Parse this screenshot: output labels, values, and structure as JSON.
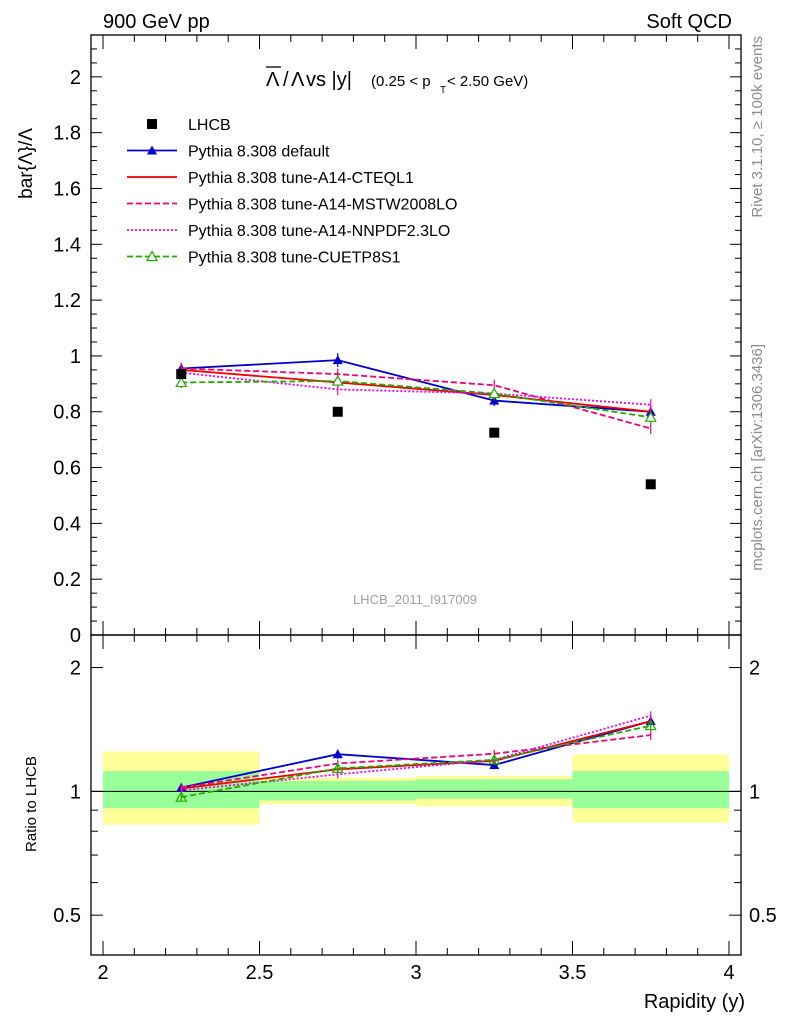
{
  "header": {
    "left": "900 GeV pp",
    "right": "Soft QCD"
  },
  "side_labels": {
    "rivet": "Rivet 3.1.10, ≥ 100k events",
    "source": "mcplots.cern.ch [arXiv:1306.3436]"
  },
  "chart_data": {
    "type": "line",
    "analysis_label": "LHCB_2011_I917009",
    "title": {
      "main": "Λ/Λ vs |y|",
      "bar_symbol": "Λ",
      "symbol": "Λ",
      "vs": " vs |y|",
      "cut_open": "(0.25 < p",
      "cut_sub": "T",
      "cut_close": " < 2.50 GeV)"
    },
    "xlabel": "Rapidity (y)",
    "ylabel": "bar{Λ}/Λ",
    "ratio_ylabel": "Ratio to LHCB",
    "xlim": [
      2,
      4
    ],
    "ylim": [
      0,
      2.15
    ],
    "ratio_ylim": [
      0.4,
      2.4
    ],
    "ratio_scale": "log",
    "x_ticks": [
      "2",
      "2.5",
      "3",
      "3.5",
      "4"
    ],
    "y_ticks": [
      "0",
      "0.2",
      "0.4",
      "0.6",
      "0.8",
      "1",
      "1.2",
      "1.4",
      "1.6",
      "1.8",
      "2"
    ],
    "ratio_ticks": [
      "0.5",
      "1",
      "2"
    ],
    "x": [
      2.25,
      2.75,
      3.25,
      3.75
    ],
    "bins": [
      [
        2.0,
        2.5
      ],
      [
        2.5,
        3.0
      ],
      [
        3.0,
        3.5
      ],
      [
        3.5,
        4.0
      ]
    ],
    "data": {
      "name": "LHCB",
      "values": [
        0.935,
        0.8,
        0.725,
        0.54
      ],
      "band_inner": [
        [
          0.91,
          1.12
        ],
        [
          0.95,
          1.06
        ],
        [
          0.96,
          1.07
        ],
        [
          0.91,
          1.12
        ]
      ],
      "band_outer": [
        [
          0.83,
          1.25
        ],
        [
          0.93,
          1.08
        ],
        [
          0.92,
          1.09
        ],
        [
          0.84,
          1.23
        ]
      ]
    },
    "series": [
      {
        "name": "Pythia 8.308 default",
        "color": "#0000cc",
        "style": "solid",
        "marker": "triangle-filled",
        "values": [
          0.955,
          0.985,
          0.84,
          0.8
        ],
        "errors": [
          0.02,
          0.025,
          0.02,
          0.02
        ]
      },
      {
        "name": "Pythia 8.308 tune-A14-CTEQL1",
        "color": "#ee0000",
        "style": "solid",
        "marker": "none",
        "values": [
          0.95,
          0.905,
          0.86,
          0.8
        ],
        "errors": [
          0.02,
          0.02,
          0.02,
          0.02
        ]
      },
      {
        "name": "Pythia 8.308 tune-A14-MSTW2008LO",
        "color": "#ee0077",
        "style": "dashed",
        "marker": "none",
        "values": [
          0.955,
          0.935,
          0.895,
          0.74
        ],
        "errors": [
          0.02,
          0.02,
          0.02,
          0.02
        ]
      },
      {
        "name": "Pythia 8.308 tune-A14-NNPDF2.3LO",
        "color": "#ee00ee",
        "style": "dotted",
        "marker": "none",
        "values": [
          0.94,
          0.88,
          0.865,
          0.825
        ],
        "errors": [
          0.02,
          0.02,
          0.02,
          0.02
        ]
      },
      {
        "name": "Pythia 8.308 tune-CUETP8S1",
        "color": "#22aa00",
        "style": "dashed",
        "marker": "triangle-open",
        "values": [
          0.905,
          0.91,
          0.865,
          0.78
        ],
        "errors": [
          0.02,
          0.02,
          0.02,
          0.02
        ]
      }
    ]
  }
}
